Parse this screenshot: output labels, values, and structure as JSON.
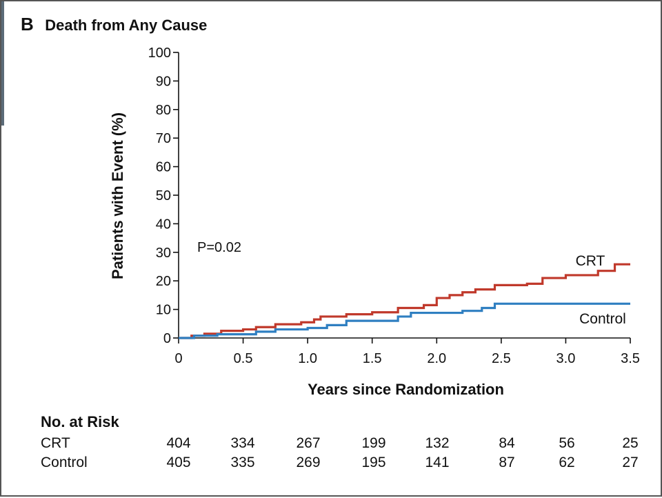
{
  "figure": {
    "panel_letter": "B",
    "title": "Death from Any Cause",
    "annotation_p": "P=0.02"
  },
  "chart_data": {
    "type": "line",
    "step": true,
    "xlabel": "Years since Randomization",
    "ylabel": "Patients with Event (%)",
    "xlim": [
      0,
      3.5
    ],
    "ylim": [
      0,
      100
    ],
    "x_ticks": [
      "0",
      "0.5",
      "1.0",
      "1.5",
      "2.0",
      "2.5",
      "3.0",
      "3.5"
    ],
    "y_ticks": [
      "0",
      "10",
      "20",
      "30",
      "40",
      "50",
      "60",
      "70",
      "80",
      "90",
      "100"
    ],
    "grid": false,
    "series": [
      {
        "name": "CRT",
        "color": "#c0392b",
        "x": [
          0,
          0.1,
          0.2,
          0.33,
          0.5,
          0.6,
          0.75,
          0.95,
          1.05,
          1.1,
          1.3,
          1.5,
          1.7,
          1.9,
          2.0,
          2.1,
          2.2,
          2.3,
          2.45,
          2.7,
          2.82,
          3.0,
          3.25,
          3.38,
          3.5
        ],
        "y": [
          0,
          0.8,
          1.5,
          2.5,
          3.0,
          3.8,
          4.8,
          5.5,
          6.5,
          7.5,
          8.3,
          9.0,
          10.5,
          11.5,
          14.0,
          15.0,
          16.0,
          17.0,
          18.5,
          19.0,
          21.0,
          22.0,
          23.5,
          25.8,
          25.8
        ],
        "end_label": "CRT"
      },
      {
        "name": "Control",
        "color": "#2f7fc1",
        "x": [
          0,
          0.12,
          0.3,
          0.6,
          0.75,
          1.0,
          1.15,
          1.3,
          1.7,
          1.8,
          2.2,
          2.35,
          2.45,
          2.8,
          3.5
        ],
        "y": [
          0,
          0.8,
          1.3,
          2.2,
          3.0,
          3.5,
          4.5,
          6.0,
          7.5,
          8.8,
          9.5,
          10.5,
          12.0,
          12.0,
          12.0
        ],
        "end_label": "Control"
      }
    ]
  },
  "risk_table": {
    "header": "No. at Risk",
    "rows": [
      {
        "label": "CRT",
        "values": [
          "404",
          "334",
          "267",
          "199",
          "132",
          "84",
          "56",
          "25"
        ]
      },
      {
        "label": "Control",
        "values": [
          "405",
          "335",
          "269",
          "195",
          "141",
          "87",
          "62",
          "27"
        ]
      }
    ]
  }
}
